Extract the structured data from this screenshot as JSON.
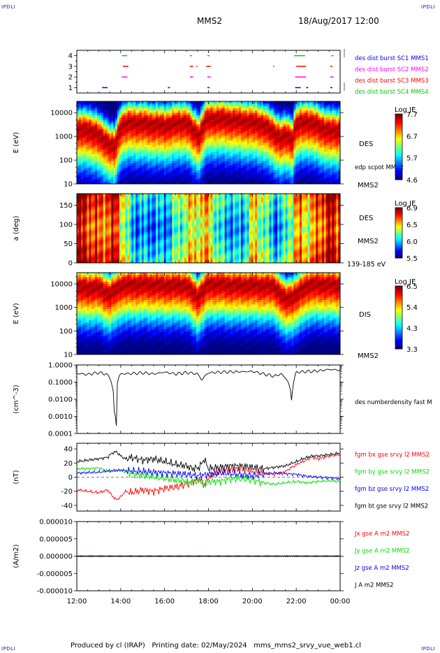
{
  "corners": "IPDLI",
  "header": {
    "title": "MMS2",
    "date": "18/Aug/2017 12:00"
  },
  "footer": {
    "produced_by": "Produced by cl (IRAP)",
    "printing_date": "Printing date: 02/May/2024",
    "filename": "mms_mms2_srvy_vue_web1.cl"
  },
  "colors": {
    "mms1": "#0000ff",
    "mms2": "#ff00ff",
    "mms3": "#ff0000",
    "mms4": "#00cc00",
    "bx": "#ff0000",
    "by": "#00e000",
    "bz": "#0000ff",
    "bt": "#000000"
  },
  "chart_data": [
    {
      "type": "scatter",
      "panel": "burst",
      "ylim": [
        0.5,
        4.5
      ],
      "yticks": [
        "1",
        "2",
        "3",
        "4"
      ],
      "legend_placement": "right",
      "series": [
        {
          "name": "des dist burst SC1 MMS1",
          "level": 1,
          "color": "#0000ff",
          "intervals": [
            [
              13.15,
              13.4
            ],
            [
              16.15,
              16.25
            ],
            [
              17.95,
              18.05
            ],
            [
              21.95,
              22.2
            ],
            [
              22.45,
              22.55
            ],
            [
              23.55,
              23.65
            ]
          ]
        },
        {
          "name": "des dist burst SC2 MMS2",
          "level": 2,
          "color": "#ff00ff",
          "intervals": [
            [
              14.05,
              14.3
            ],
            [
              17.15,
              17.3
            ],
            [
              17.95,
              18.1
            ],
            [
              21.95,
              22.1
            ],
            [
              22.1,
              22.45
            ],
            [
              23.55,
              23.7
            ]
          ]
        },
        {
          "name": "des dist burst SC3 MMS3",
          "level": 3,
          "color": "#ff0000",
          "intervals": [
            [
              14.1,
              14.35
            ],
            [
              17.15,
              17.3
            ],
            [
              17.45,
              17.5
            ],
            [
              17.9,
              18.1
            ],
            [
              20.95,
              21.0
            ],
            [
              22.0,
              22.2
            ],
            [
              22.2,
              22.45
            ],
            [
              23.55,
              23.65
            ]
          ]
        },
        {
          "name": "des dist burst SC4 MMS4",
          "level": 4,
          "color": "#00cc00",
          "intervals": [
            [
              14.05,
              14.3
            ],
            [
              17.15,
              17.25
            ],
            [
              17.95,
              18.05
            ],
            [
              21.9,
              22.25
            ],
            [
              22.25,
              22.4
            ],
            [
              23.6,
              23.7
            ]
          ]
        }
      ]
    },
    {
      "type": "heatmap",
      "panel": "des_energy",
      "ylabel": "E (eV)",
      "yscale": "log",
      "ylim": [
        10,
        30000
      ],
      "yticks": [
        "10",
        "100",
        "1000",
        "10000"
      ],
      "label": "DES",
      "note": "edp scpot MMS2",
      "sat": "MMS2",
      "colorbar": {
        "title": "Log JE",
        "ticks": [
          "7.7",
          "6.7",
          "5.7",
          "4.6"
        ],
        "range": [
          4.6,
          7.7
        ]
      },
      "time_x": [
        12,
        12.5,
        13,
        13.3,
        13.5,
        13.7,
        13.85,
        14,
        14.5,
        15,
        15.5,
        16,
        16.5,
        17,
        17.3,
        17.6,
        17.8,
        18,
        18.5,
        19,
        19.5,
        20,
        20.5,
        21,
        21.3,
        21.6,
        21.8,
        22,
        22.5,
        23,
        23.5,
        24
      ],
      "ridge_logE": [
        3.3,
        3.35,
        3.1,
        2.9,
        2.7,
        2.6,
        3.0,
        3.5,
        3.65,
        3.6,
        3.55,
        3.5,
        3.6,
        3.65,
        3.3,
        3.1,
        3.6,
        3.8,
        3.8,
        3.75,
        3.7,
        3.65,
        3.55,
        3.2,
        3.0,
        3.1,
        2.9,
        3.55,
        3.7,
        3.5,
        3.3,
        3.3
      ]
    },
    {
      "type": "heatmap",
      "panel": "des_pitch",
      "ylabel": "a (deg)",
      "ylim": [
        0,
        180
      ],
      "yticks": [
        "0",
        "50",
        "100",
        "150"
      ],
      "label": "DES",
      "sat": "MMS2",
      "note": "139-185 eV",
      "colorbar": {
        "title": "Log JE",
        "ticks": [
          "6.9",
          "6.5",
          "6.0",
          "5.5"
        ],
        "range": [
          5.5,
          6.9
        ]
      },
      "time_x": [
        12,
        12.5,
        13,
        13.5,
        13.8,
        14,
        14.5,
        15,
        16,
        16.5,
        17,
        17.5,
        18,
        18.5,
        19,
        19.5,
        20,
        20.5,
        21,
        21.5,
        22,
        22.5,
        23,
        23.5,
        24
      ],
      "level": [
        0.85,
        0.8,
        0.7,
        0.75,
        0.8,
        0.6,
        0.25,
        0.2,
        0.2,
        0.35,
        0.5,
        0.55,
        0.6,
        0.3,
        0.25,
        0.2,
        0.55,
        0.45,
        0.2,
        0.3,
        0.65,
        0.55,
        0.7,
        0.85,
        0.75
      ]
    },
    {
      "type": "heatmap",
      "panel": "dis_energy",
      "ylabel": "E (eV)",
      "yscale": "log",
      "ylim": [
        10,
        30000
      ],
      "yticks": [
        "10",
        "100",
        "1000",
        "10000"
      ],
      "label": "DIS",
      "sat": "MMS2",
      "colorbar": {
        "title": "Log JE",
        "ticks": [
          "6.5",
          "5.4",
          "4.3",
          "3.3"
        ],
        "range": [
          3.3,
          6.5
        ]
      },
      "time_x": [
        12,
        13,
        13.5,
        14,
        15,
        16,
        17,
        17.5,
        18,
        18.5,
        19,
        20,
        21,
        21.5,
        22,
        22.5,
        23,
        24
      ],
      "ridge_logE": [
        3.9,
        3.9,
        3.6,
        4.0,
        4.05,
        4.0,
        4.0,
        3.5,
        4.05,
        4.05,
        4.0,
        4.0,
        3.95,
        3.4,
        3.6,
        4.0,
        4.05,
        4.0
      ]
    },
    {
      "type": "line",
      "panel": "density",
      "ylabel": "(cm^-3)",
      "yscale": "log",
      "ylim": [
        0.0001,
        1.0
      ],
      "yticks": [
        "0.0001",
        "0.0010",
        "0.0100",
        "0.1000",
        "1.0000"
      ],
      "series": [
        {
          "name": "des numberdensity fast M",
          "color": "#000000",
          "x": [
            12,
            12.5,
            13,
            13.3,
            13.5,
            13.6,
            13.7,
            13.8,
            13.9,
            14,
            14.5,
            15,
            15.5,
            16,
            16.5,
            17,
            17.5,
            17.7,
            18,
            18.5,
            19,
            19.5,
            20,
            20.5,
            21,
            21.3,
            21.5,
            21.7,
            21.8,
            21.9,
            22,
            22.5,
            23,
            23.5,
            24
          ],
          "y": [
            0.32,
            0.28,
            0.36,
            0.3,
            0.2,
            0.06,
            0.002,
            0.0003,
            0.18,
            0.3,
            0.32,
            0.35,
            0.3,
            0.38,
            0.3,
            0.36,
            0.3,
            0.12,
            0.35,
            0.38,
            0.4,
            0.4,
            0.42,
            0.3,
            0.22,
            0.3,
            0.18,
            0.05,
            0.0015,
            0.12,
            0.38,
            0.42,
            0.45,
            0.55,
            0.5
          ]
        }
      ]
    },
    {
      "type": "line",
      "panel": "magnetic_field",
      "ylabel": "(nT)",
      "ylim": [
        -48,
        48
      ],
      "yticks": [
        "-40",
        "-20",
        "0",
        "20",
        "40"
      ],
      "series": [
        {
          "name": "fgm bx gse srvy l2 MMS2",
          "color": "#ff0000",
          "x": [
            12,
            12.5,
            13,
            13.4,
            13.6,
            13.8,
            14,
            14.2,
            14.5,
            15,
            15.5,
            16,
            16.5,
            17,
            17.3,
            17.6,
            17.8,
            18,
            18.5,
            19,
            19.5,
            20,
            20.5,
            21,
            21.5,
            22,
            22.3,
            22.7,
            23,
            23.5,
            24
          ],
          "y": [
            -18,
            -20,
            -22,
            -18,
            -26,
            -32,
            -28,
            -20,
            -22,
            -18,
            -20,
            -16,
            -14,
            -10,
            -6,
            -2,
            -12,
            0,
            8,
            10,
            12,
            8,
            6,
            4,
            8,
            18,
            22,
            28,
            26,
            30,
            32
          ]
        },
        {
          "name": "fgm by gse srvy l2 MMS2",
          "color": "#00e000",
          "x": [
            12,
            12.5,
            13,
            13.5,
            14,
            14.5,
            15,
            15.5,
            16,
            16.5,
            17,
            17.3,
            17.6,
            17.8,
            18,
            18.5,
            19,
            19.5,
            20,
            20.5,
            21,
            21.5,
            22,
            22.5,
            23,
            23.5,
            24
          ],
          "y": [
            12,
            12,
            13,
            8,
            10,
            5,
            3,
            0,
            -2,
            -4,
            -6,
            -8,
            -4,
            -12,
            -6,
            -6,
            -3,
            -2,
            -4,
            -8,
            -10,
            -8,
            -6,
            -8,
            -6,
            -5,
            -6
          ]
        },
        {
          "name": "fgm bz gse srvy l2 MMS2",
          "color": "#0000ff",
          "x": [
            12,
            13,
            13.5,
            14,
            14.5,
            15,
            16,
            17,
            17.5,
            18,
            18.5,
            19,
            20,
            20.5,
            21,
            21.5,
            22,
            22.5,
            23,
            23.5,
            24
          ],
          "y": [
            6,
            7,
            9,
            10,
            9,
            8,
            6,
            4,
            2,
            4,
            6,
            5,
            2,
            4,
            6,
            5,
            4,
            1,
            0,
            -1,
            -2
          ]
        },
        {
          "name": "fgm bt gse srvy l2 MMS2",
          "color": "#000000",
          "x": [
            12,
            12.5,
            13,
            13.4,
            13.6,
            13.8,
            14,
            14.2,
            14.5,
            15,
            15.5,
            16,
            16.5,
            17,
            17.3,
            17.6,
            17.8,
            18,
            18.5,
            19,
            19.5,
            20,
            20.5,
            21,
            21.5,
            22,
            22.3,
            22.7,
            23,
            23.5,
            24
          ],
          "y": [
            22,
            24,
            26,
            28,
            34,
            36,
            30,
            26,
            28,
            24,
            26,
            22,
            18,
            16,
            12,
            14,
            26,
            12,
            14,
            16,
            16,
            14,
            12,
            14,
            16,
            22,
            26,
            30,
            30,
            32,
            34
          ]
        }
      ]
    },
    {
      "type": "line",
      "panel": "current_density",
      "ylabel": "(A/m2)",
      "ylim": [
        -1e-05,
        1e-05
      ],
      "yticks": [
        "-0.000010",
        "-0.000005",
        "0.000000",
        "0.000005",
        "0.000010"
      ],
      "xticks": [
        "12:00",
        "14:00",
        "16:00",
        "18:00",
        "20:00",
        "22:00",
        "00:00"
      ],
      "series": [
        {
          "name": "Jx gse A m2 MMS2",
          "color": "#ff0000",
          "x": [
            12,
            24
          ],
          "y": [
            0,
            0
          ]
        },
        {
          "name": "Jy gse A m2 MMS2",
          "color": "#00e000",
          "x": [
            12,
            24
          ],
          "y": [
            0,
            0
          ]
        },
        {
          "name": "Jz gse A m2 MMS2",
          "color": "#0000ff",
          "x": [
            12,
            24
          ],
          "y": [
            0,
            0
          ]
        },
        {
          "name": "J A m2 MMS2",
          "color": "#000000",
          "x": [
            12,
            24
          ],
          "y": [
            0,
            0
          ]
        }
      ]
    }
  ]
}
